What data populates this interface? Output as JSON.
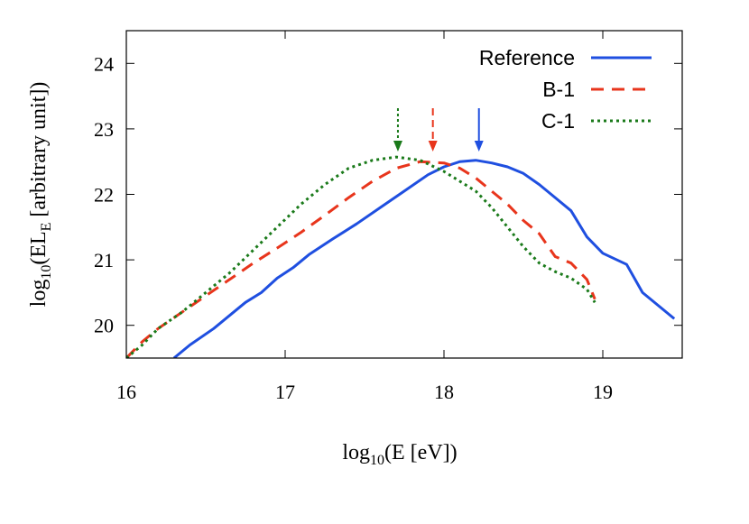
{
  "chart_data": {
    "type": "line",
    "xlabel": {
      "main": "log",
      "sub": "10",
      "rest": "(E [eV])"
    },
    "ylabel": {
      "main": "log",
      "sub1": "10",
      "mid": "(EL",
      "sub2": "E",
      "rest": " [arbitrary unit])"
    },
    "xlim": [
      16,
      19.5
    ],
    "ylim": [
      19.5,
      24.5
    ],
    "xticks": [
      16,
      17,
      18,
      19
    ],
    "yticks": [
      20,
      21,
      22,
      23,
      24
    ],
    "grid": false,
    "legend_position": "top-right",
    "series": [
      {
        "name": "Reference",
        "color": "#1f4fe0",
        "dash": "solid",
        "peak_marker": 18.22,
        "x": [
          16.3,
          16.4,
          16.55,
          16.65,
          16.75,
          16.85,
          16.95,
          17.05,
          17.15,
          17.3,
          17.45,
          17.6,
          17.75,
          17.9,
          18.0,
          18.1,
          18.2,
          18.3,
          18.4,
          18.5,
          18.6,
          18.7,
          18.8,
          18.9,
          19.0,
          19.15,
          19.25,
          19.45
        ],
        "y": [
          19.5,
          19.7,
          19.95,
          20.15,
          20.35,
          20.5,
          20.72,
          20.88,
          21.08,
          21.32,
          21.55,
          21.8,
          22.05,
          22.3,
          22.42,
          22.5,
          22.52,
          22.48,
          22.42,
          22.32,
          22.15,
          21.95,
          21.75,
          21.35,
          21.1,
          20.93,
          20.5,
          20.1
        ]
      },
      {
        "name": "B-1",
        "color": "#e8351c",
        "dash": "long-dash",
        "peak_marker": 17.93,
        "x": [
          16.0,
          16.1,
          16.2,
          16.35,
          16.5,
          16.65,
          16.8,
          16.95,
          17.1,
          17.25,
          17.4,
          17.55,
          17.7,
          17.85,
          18.0,
          18.1,
          18.2,
          18.3,
          18.4,
          18.5,
          18.6,
          18.7,
          18.8,
          18.9,
          18.95
        ],
        "y": [
          19.5,
          19.75,
          19.95,
          20.2,
          20.45,
          20.7,
          20.95,
          21.18,
          21.42,
          21.68,
          21.95,
          22.2,
          22.4,
          22.5,
          22.48,
          22.4,
          22.25,
          22.05,
          21.85,
          21.6,
          21.4,
          21.05,
          20.95,
          20.7,
          20.4
        ]
      },
      {
        "name": "C-1",
        "color": "#1a7a1a",
        "dash": "dotted",
        "peak_marker": 17.71,
        "x": [
          16.0,
          16.1,
          16.2,
          16.35,
          16.5,
          16.65,
          16.8,
          16.95,
          17.1,
          17.25,
          17.4,
          17.55,
          17.7,
          17.85,
          18.0,
          18.1,
          18.2,
          18.3,
          18.4,
          18.5,
          18.6,
          18.7,
          18.8,
          18.9,
          18.95
        ],
        "y": [
          19.5,
          19.7,
          19.95,
          20.2,
          20.5,
          20.8,
          21.15,
          21.5,
          21.85,
          22.15,
          22.4,
          22.52,
          22.57,
          22.52,
          22.35,
          22.2,
          22.05,
          21.8,
          21.5,
          21.2,
          20.95,
          20.82,
          20.72,
          20.55,
          20.35
        ]
      }
    ]
  }
}
